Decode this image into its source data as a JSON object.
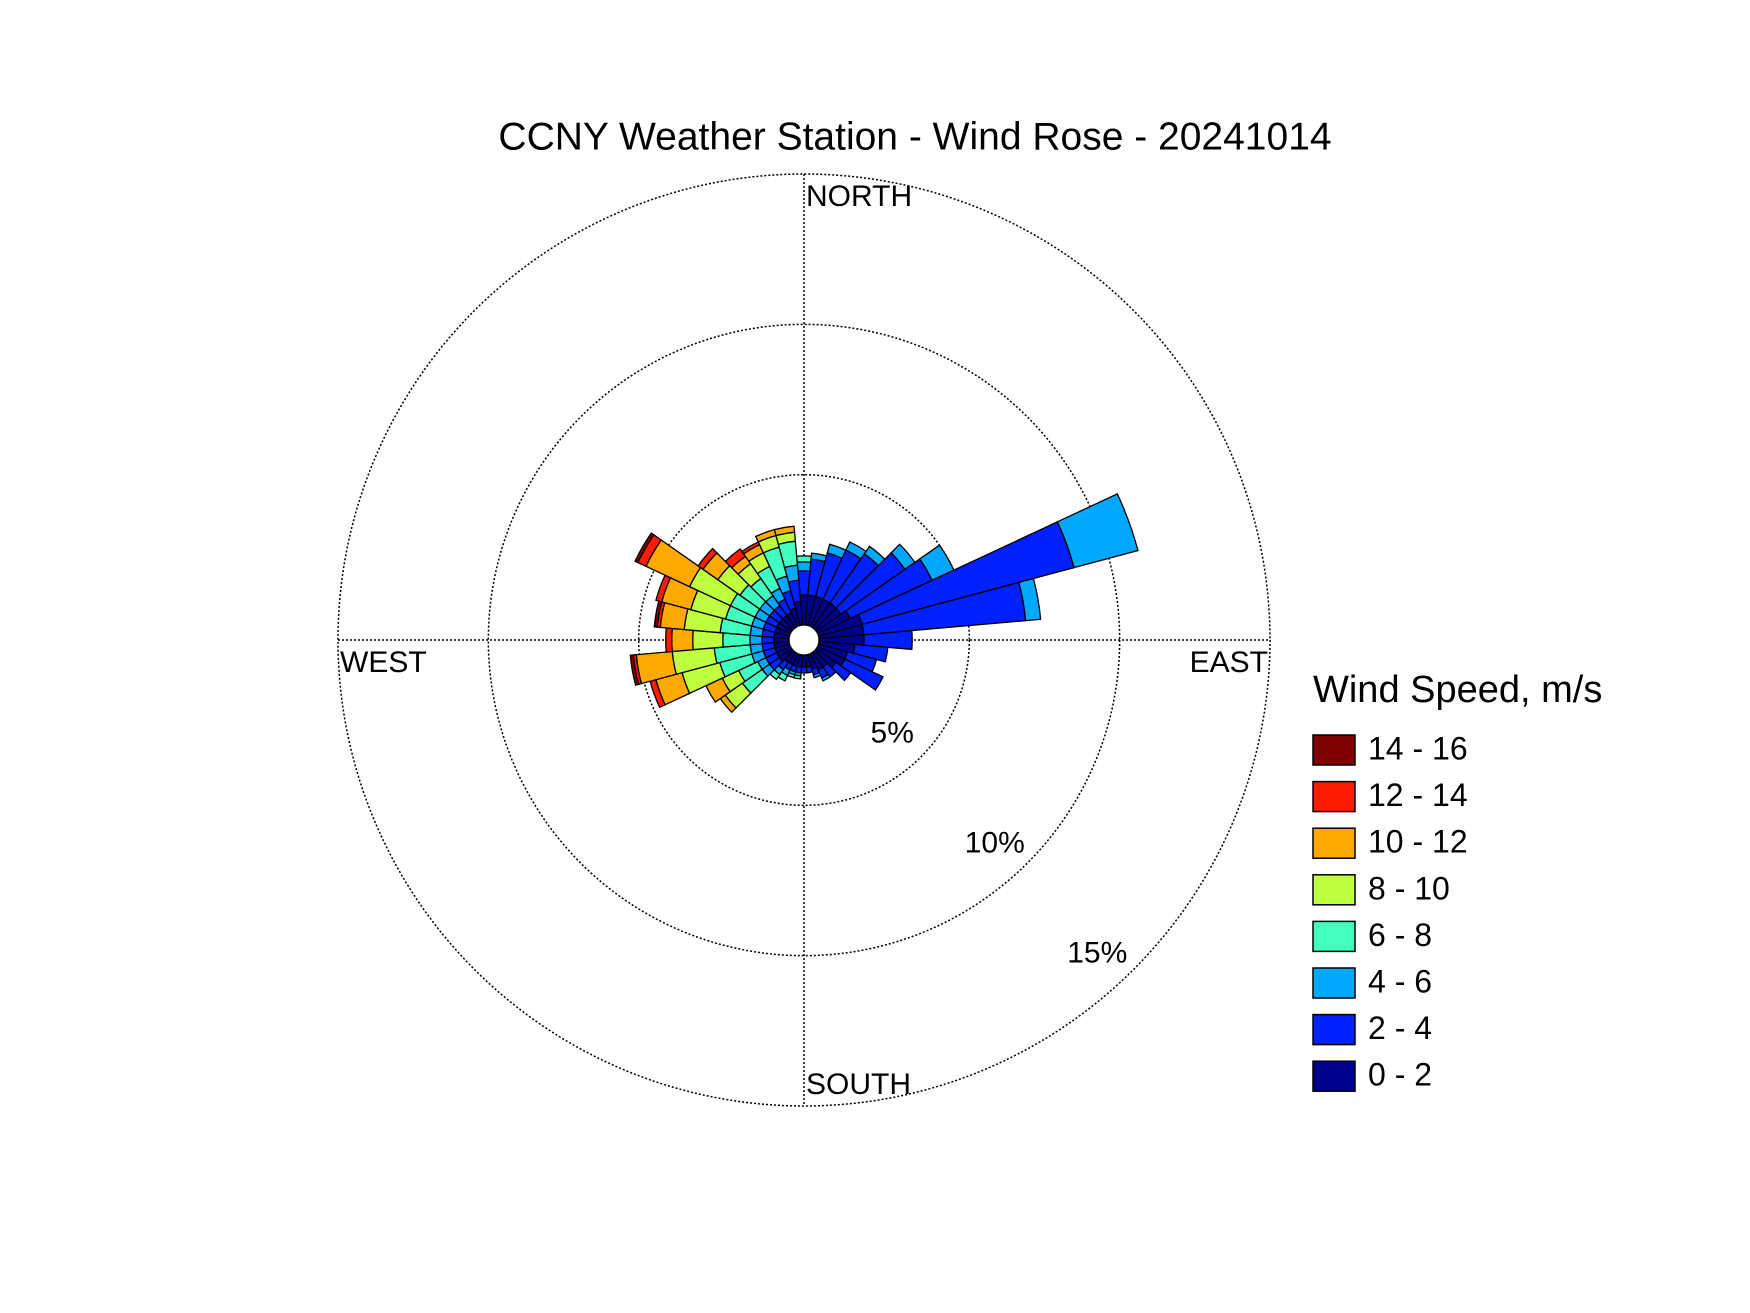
{
  "chart_data": {
    "type": "wind_rose",
    "title": "CCNY Weather Station - Wind Rose - 20241014",
    "cardinal_labels": [
      "NORTH",
      "EAST",
      "SOUTH",
      "WEST"
    ],
    "legend_title": "Wind Speed, m/s",
    "directions": [
      0,
      10,
      20,
      30,
      40,
      50,
      60,
      70,
      80,
      90,
      100,
      110,
      120,
      130,
      140,
      150,
      160,
      170,
      180,
      190,
      200,
      210,
      220,
      230,
      240,
      250,
      260,
      270,
      280,
      290,
      300,
      310,
      320,
      330,
      340,
      350
    ],
    "rlim": [
      0,
      15
    ],
    "rticks": [
      {
        "value": 5,
        "label": "5%"
      },
      {
        "value": 10,
        "label": "10%"
      },
      {
        "value": 15,
        "label": "15%"
      }
    ],
    "grid": true,
    "series": [
      {
        "name": "0 - 2",
        "color": "#00008f",
        "values": [
          1.0,
          1.0,
          1.0,
          1.0,
          1.0,
          1.0,
          1.2,
          1.5,
          1.5,
          1.5,
          1.2,
          1.0,
          1.0,
          0.8,
          0.6,
          0.6,
          0.5,
          0.4,
          0.4,
          0.4,
          0.4,
          0.4,
          0.4,
          0.5,
          0.5,
          0.5,
          0.5,
          0.5,
          0.5,
          0.5,
          0.5,
          0.5,
          0.5,
          0.5,
          0.6,
          0.8
        ]
      },
      {
        "name": "2 - 4",
        "color": "#0020ff",
        "values": [
          0.8,
          1.2,
          1.5,
          1.8,
          2.0,
          2.6,
          3.0,
          7.3,
          5.4,
          1.6,
          1.1,
          1.0,
          1.4,
          0.6,
          0.4,
          0.3,
          0.2,
          0.2,
          0.2,
          0.2,
          0.2,
          0.2,
          0.3,
          0.4,
          0.4,
          0.4,
          0.4,
          0.4,
          0.4,
          0.4,
          0.4,
          0.4,
          0.4,
          0.5,
          0.6,
          0.7
        ]
      },
      {
        "name": "4 - 6",
        "color": "#00a8ff",
        "values": [
          0.3,
          0.2,
          0.3,
          0.3,
          0.3,
          0.4,
          0.8,
          2.2,
          0.5,
          0,
          0,
          0,
          0,
          0,
          0,
          0.1,
          0.1,
          0,
          0,
          0.1,
          0.1,
          0.2,
          0.2,
          0.3,
          0.3,
          0.4,
          0.4,
          0.4,
          0.4,
          0.4,
          0.4,
          0.4,
          0.4,
          0.4,
          0.5,
          0.5
        ]
      },
      {
        "name": "6 - 8",
        "color": "#40ffc0",
        "values": [
          0.2,
          0,
          0,
          0,
          0,
          0,
          0,
          0,
          0,
          0,
          0,
          0,
          0,
          0,
          0,
          0,
          0,
          0,
          0,
          0.1,
          0.1,
          0.2,
          0.2,
          0.8,
          0.7,
          1.1,
          1.2,
          0.9,
          1.0,
          0.9,
          0.9,
          0.8,
          0.7,
          0.8,
          1.0,
          0.8
        ]
      },
      {
        "name": "8 - 10",
        "color": "#c0ff40",
        "values": [
          0,
          0,
          0,
          0,
          0,
          0,
          0,
          0,
          0,
          0,
          0,
          0,
          0,
          0,
          0,
          0,
          0,
          0,
          0,
          0,
          0,
          0,
          0,
          0.7,
          0.6,
          1.3,
          1.4,
          1.0,
          1.2,
          1.2,
          1.5,
          0.9,
          0.6,
          0.5,
          0.4,
          0.3
        ]
      },
      {
        "name": "10 - 12",
        "color": "#ffa800",
        "values": [
          0,
          0,
          0,
          0,
          0,
          0,
          0,
          0,
          0,
          0,
          0,
          0,
          0,
          0,
          0,
          0,
          0,
          0,
          0,
          0,
          0,
          0,
          0,
          0.2,
          0.6,
          0.9,
          1.2,
          0.7,
          0.8,
          1.0,
          1.6,
          0.6,
          0.3,
          0.3,
          0.2,
          0.2
        ]
      },
      {
        "name": "12 - 14",
        "color": "#ff1a00",
        "values": [
          0,
          0,
          0,
          0,
          0,
          0,
          0,
          0,
          0,
          0,
          0,
          0,
          0,
          0,
          0,
          0,
          0,
          0,
          0,
          0,
          0,
          0,
          0,
          0,
          0,
          0.2,
          0.1,
          0.2,
          0.1,
          0.2,
          0.3,
          0.2,
          0.3,
          0.1,
          0,
          0
        ]
      },
      {
        "name": "14 - 16",
        "color": "#800000",
        "values": [
          0,
          0,
          0,
          0,
          0,
          0,
          0,
          0,
          0,
          0,
          0,
          0,
          0,
          0,
          0,
          0,
          0,
          0,
          0,
          0,
          0,
          0,
          0,
          0,
          0,
          0,
          0.1,
          0,
          0.1,
          0,
          0.1,
          0,
          0,
          0,
          0,
          0
        ]
      }
    ]
  }
}
